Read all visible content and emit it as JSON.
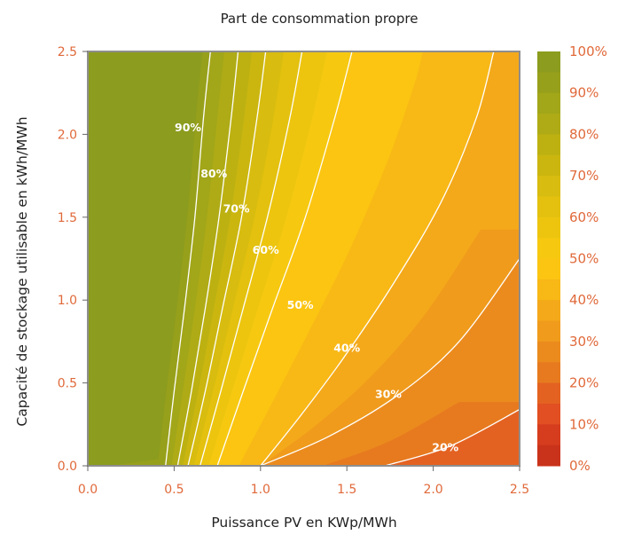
{
  "chart_data": {
    "type": "heatmap",
    "subtype": "filled-contour",
    "title": "Part de consommation propre",
    "xlabel": "Puissance PV en KWp/MWh",
    "ylabel": "Capacité de stockage utilisable en kWh/MWh",
    "xlim": [
      0.0,
      2.5
    ],
    "ylim": [
      0.0,
      2.5
    ],
    "x_ticks": [
      "0.0",
      "0.5",
      "1.0",
      "1.5",
      "2.0",
      "2.5"
    ],
    "y_ticks": [
      "0.0",
      "0.5",
      "1.0",
      "1.5",
      "2.0",
      "2.5"
    ],
    "grid": false,
    "colorbar": {
      "position": "right",
      "labels": [
        "100%",
        "90%",
        "80%",
        "70%",
        "60%",
        "50%",
        "40%",
        "30%",
        "20%",
        "10%",
        "0%"
      ],
      "levels": [
        {
          "from": 95,
          "to": 100,
          "color": "#8c9c1e"
        },
        {
          "from": 90,
          "to": 95,
          "color": "#97a01b"
        },
        {
          "from": 85,
          "to": 90,
          "color": "#a2a619"
        },
        {
          "from": 80,
          "to": 85,
          "color": "#aeab16"
        },
        {
          "from": 75,
          "to": 80,
          "color": "#bdb112"
        },
        {
          "from": 70,
          "to": 75,
          "color": "#cbb610"
        },
        {
          "from": 65,
          "to": 70,
          "color": "#d8bc0f"
        },
        {
          "from": 60,
          "to": 65,
          "color": "#e3c10e"
        },
        {
          "from": 55,
          "to": 60,
          "color": "#edc50f"
        },
        {
          "from": 50,
          "to": 55,
          "color": "#f6c910"
        },
        {
          "from": 45,
          "to": 50,
          "color": "#fbc512"
        },
        {
          "from": 40,
          "to": 45,
          "color": "#f8b816"
        },
        {
          "from": 35,
          "to": 40,
          "color": "#f4a91a"
        },
        {
          "from": 30,
          "to": 35,
          "color": "#f09b1c"
        },
        {
          "from": 25,
          "to": 30,
          "color": "#eb8b1e"
        },
        {
          "from": 20,
          "to": 25,
          "color": "#e77a1f"
        },
        {
          "from": 15,
          "to": 20,
          "color": "#e46221"
        },
        {
          "from": 10,
          "to": 15,
          "color": "#e14f22"
        },
        {
          "from": 5,
          "to": 10,
          "color": "#d63d1e"
        },
        {
          "from": 0,
          "to": 5,
          "color": "#c9331b"
        }
      ]
    },
    "contours": [
      {
        "level": 90,
        "label": "90%",
        "points": [
          [
            0.45,
            0.0
          ],
          [
            0.5,
            0.45
          ],
          [
            0.56,
            0.95
          ],
          [
            0.62,
            1.5
          ],
          [
            0.67,
            2.1
          ],
          [
            0.71,
            2.5
          ]
        ],
        "label_at": [
          0.58,
          2.04
        ]
      },
      {
        "level": 80,
        "label": "80%",
        "points": [
          [
            0.52,
            0.0
          ],
          [
            0.6,
            0.45
          ],
          [
            0.68,
            0.95
          ],
          [
            0.76,
            1.5
          ],
          [
            0.83,
            2.1
          ],
          [
            0.87,
            2.5
          ]
        ],
        "label_at": [
          0.73,
          1.76
        ]
      },
      {
        "level": 70,
        "label": "70%",
        "points": [
          [
            0.58,
            0.0
          ],
          [
            0.68,
            0.45
          ],
          [
            0.78,
            0.95
          ],
          [
            0.89,
            1.5
          ],
          [
            0.98,
            2.1
          ],
          [
            1.03,
            2.5
          ]
        ],
        "label_at": [
          0.86,
          1.55
        ]
      },
      {
        "level": 60,
        "label": "60%",
        "points": [
          [
            0.65,
            0.0
          ],
          [
            0.77,
            0.45
          ],
          [
            0.9,
            0.95
          ],
          [
            1.04,
            1.5
          ],
          [
            1.17,
            2.1
          ],
          [
            1.24,
            2.5
          ]
        ],
        "label_at": [
          1.03,
          1.3
        ]
      },
      {
        "level": 50,
        "label": "50%",
        "points": [
          [
            0.75,
            0.0
          ],
          [
            0.9,
            0.45
          ],
          [
            1.07,
            0.95
          ],
          [
            1.26,
            1.5
          ],
          [
            1.43,
            2.1
          ],
          [
            1.53,
            2.5
          ]
        ],
        "label_at": [
          1.23,
          0.97
        ]
      },
      {
        "level": 40,
        "label": "40%",
        "points": [
          [
            1.0,
            0.0
          ],
          [
            1.23,
            0.3
          ],
          [
            1.48,
            0.65
          ],
          [
            1.77,
            1.1
          ],
          [
            2.05,
            1.6
          ],
          [
            2.25,
            2.1
          ],
          [
            2.35,
            2.5
          ]
        ],
        "label_at": [
          1.5,
          0.71
        ]
      },
      {
        "level": 30,
        "label": "30%",
        "points": [
          [
            1.0,
            0.0
          ],
          [
            1.4,
            0.18
          ],
          [
            1.8,
            0.43
          ],
          [
            2.15,
            0.75
          ],
          [
            2.5,
            1.25
          ]
        ],
        "label_at": [
          1.74,
          0.43
        ]
      },
      {
        "level": 20,
        "label": "20%",
        "points": [
          [
            1.72,
            0.0
          ],
          [
            2.1,
            0.12
          ],
          [
            2.5,
            0.34
          ]
        ],
        "label_at": [
          2.07,
          0.11
        ]
      }
    ]
  }
}
